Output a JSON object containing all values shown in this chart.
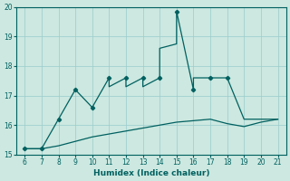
{
  "xlabel": "Humidex (Indice chaleur)",
  "bg_color": "#cce8e0",
  "line_color": "#006060",
  "grid_color": "#99cccc",
  "upper_x": [
    6,
    7,
    8,
    9,
    10,
    11,
    11,
    12,
    12,
    13,
    13,
    14,
    14,
    15,
    15,
    16,
    16,
    17,
    17,
    18,
    19,
    20,
    21
  ],
  "upper_y": [
    15.2,
    15.2,
    16.2,
    17.2,
    16.6,
    17.6,
    17.3,
    17.6,
    17.3,
    17.6,
    17.3,
    17.6,
    18.6,
    18.75,
    19.85,
    17.2,
    17.6,
    17.6,
    17.6,
    17.6,
    16.2,
    16.2,
    16.2
  ],
  "lower_x": [
    6,
    7,
    8,
    9,
    10,
    11,
    12,
    13,
    14,
    15,
    16,
    17,
    18,
    19,
    20,
    21
  ],
  "lower_y": [
    15.2,
    15.2,
    15.3,
    15.45,
    15.6,
    15.7,
    15.8,
    15.9,
    16.0,
    16.1,
    16.15,
    16.2,
    16.05,
    15.95,
    16.1,
    16.2
  ],
  "marker_upper_x": [
    6,
    7,
    8,
    9,
    10,
    11,
    12,
    13,
    14,
    15,
    16,
    17,
    18
  ],
  "marker_upper_y": [
    15.2,
    15.2,
    16.2,
    17.2,
    16.6,
    17.6,
    17.6,
    17.6,
    17.6,
    19.85,
    17.2,
    17.6,
    17.6
  ],
  "marker_lower_x": [
    6,
    7,
    8,
    9,
    10,
    11,
    12,
    13,
    14,
    15,
    16,
    17,
    18,
    19,
    20,
    21
  ],
  "marker_lower_y": [
    15.2,
    15.2,
    15.3,
    15.45,
    15.6,
    15.7,
    15.8,
    15.9,
    16.0,
    16.1,
    16.15,
    16.2,
    16.05,
    15.95,
    16.1,
    16.2
  ],
  "ylim": [
    15.0,
    20.0
  ],
  "xlim": [
    5.5,
    21.5
  ],
  "yticks": [
    15,
    16,
    17,
    18,
    19,
    20
  ],
  "xticks": [
    6,
    7,
    8,
    9,
    10,
    11,
    12,
    13,
    14,
    15,
    16,
    17,
    18,
    19,
    20,
    21
  ]
}
